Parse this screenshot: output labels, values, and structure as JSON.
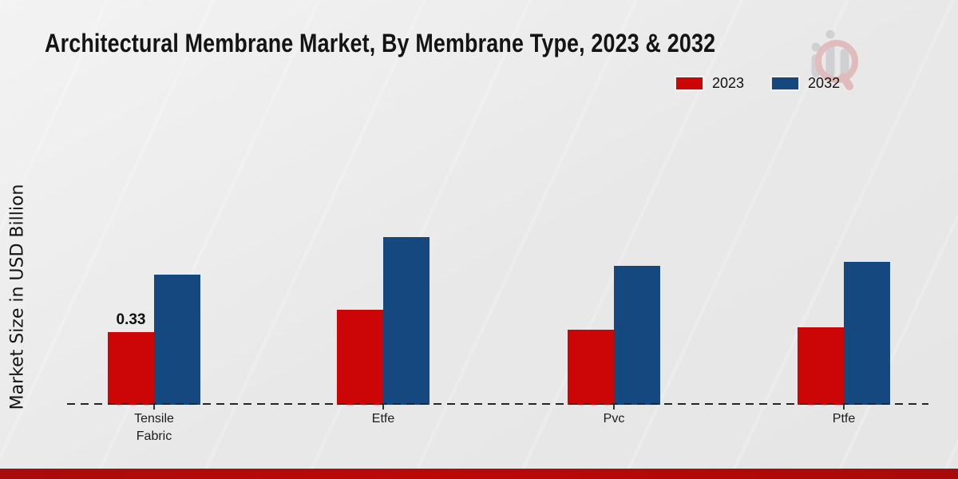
{
  "header": {
    "title": "Architectural Membrane Market, By Membrane Type, 2023 & 2032"
  },
  "legend": {
    "position": "top-right",
    "items": [
      {
        "label": "2023",
        "color": "#cc0606"
      },
      {
        "label": "2032",
        "color": "#14487e"
      }
    ]
  },
  "chart_data": {
    "type": "bar",
    "title": "Architectural Membrane Market, By Membrane Type, 2023 & 2032",
    "xlabel": "",
    "ylabel": "Market Size in USD Billion",
    "categories": [
      "Tensile Fabric",
      "Etfe",
      "Pvc",
      "Ptfe"
    ],
    "series": [
      {
        "name": "2023",
        "color": "#cc0606",
        "values": [
          0.33,
          0.43,
          0.34,
          0.35
        ]
      },
      {
        "name": "2032",
        "color": "#14487e",
        "values": [
          0.59,
          0.76,
          0.63,
          0.65
        ]
      }
    ],
    "data_labels": [
      {
        "category": "Tensile Fabric",
        "series": "2023",
        "text": "0.33"
      }
    ],
    "ylim": [
      0,
      0.8
    ],
    "grid": false,
    "legend_position": "top-right",
    "baseline_style": "dashed"
  },
  "branding": {
    "watermark_icon": "magnifier-bar-chart-logo",
    "bottom_bar_color": "#b20a0a"
  }
}
